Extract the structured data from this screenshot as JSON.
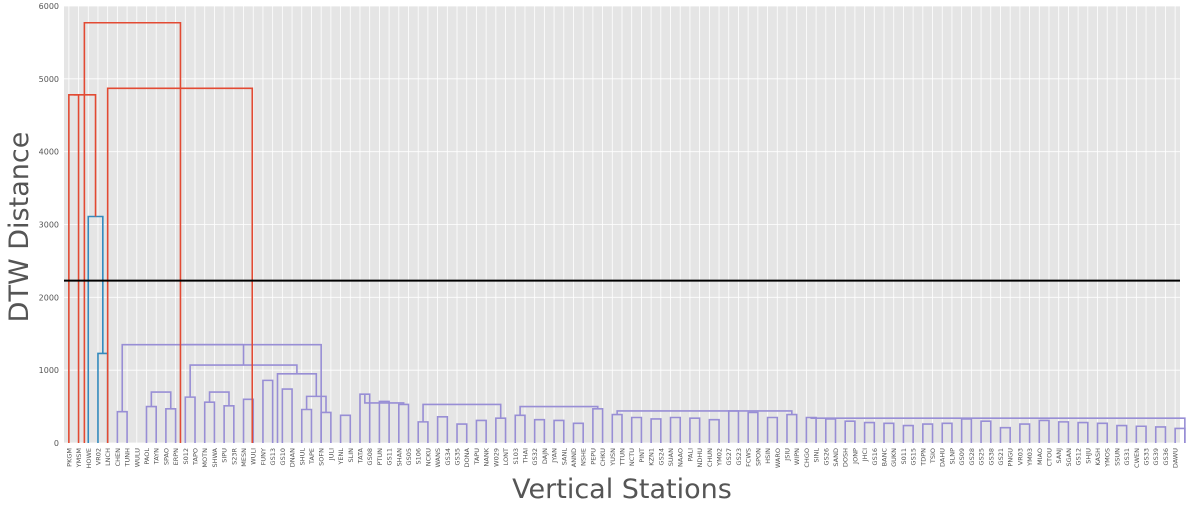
{
  "chart_data": {
    "type": "dendrogram",
    "xlabel": "Vertical Stations",
    "ylabel": "DTW Distance",
    "ylim": [
      0,
      6000
    ],
    "yticks": [
      0,
      1000,
      2000,
      3000,
      4000,
      5000,
      6000
    ],
    "grid": true,
    "threshold": 2230,
    "colors": {
      "background": "#e5e5e5",
      "grid": "#ffffff",
      "top_link": "#e24a33",
      "cluster_1": "#348abd",
      "cluster_2": "#988ed5",
      "threshold_line": "#000000",
      "tick_text": "#555555"
    },
    "leaves": [
      "PKGM",
      "YMSM",
      "HOWE",
      "VR02",
      "LNCH",
      "CHEN",
      "TUNH",
      "WULU",
      "PAOL",
      "TAYN",
      "SPAO",
      "ERPN",
      "S012",
      "TAPO",
      "MOTN",
      "SHWA",
      "SIPU",
      "S23R",
      "MESN",
      "WULI",
      "FUNY",
      "GS13",
      "GS10",
      "DNAN",
      "SHUL",
      "TAPE",
      "SOFN",
      "JULI",
      "YENL",
      "SLIN",
      "TATA",
      "GS08",
      "PTUN",
      "GS11",
      "SHAN",
      "GS05",
      "S106",
      "NCKU",
      "WANS",
      "GS34",
      "GS35",
      "DONA",
      "TAPU",
      "NANK",
      "W029",
      "LONT",
      "S103",
      "THAI",
      "GS32",
      "DAJN",
      "JYAN",
      "SANL",
      "ANND",
      "NSHE",
      "PEPU",
      "CHKU",
      "YUSN",
      "TTUN",
      "NCTU",
      "PINT",
      "KZN1",
      "GS24",
      "SUAN",
      "NAAO",
      "PALI",
      "NDHU",
      "CHUN",
      "YM02",
      "GS27",
      "GS23",
      "FCWS",
      "SPON",
      "HSIN",
      "WARO",
      "JSIU",
      "WIPN",
      "CHGO",
      "SINL",
      "GS26",
      "SAND",
      "DOSH",
      "JONP",
      "JHCI",
      "GS16",
      "BANC",
      "GUKN",
      "S011",
      "GS15",
      "TDPN",
      "TSIO",
      "DAHU",
      "SLNP",
      "GS09",
      "GS28",
      "GS25",
      "GS38",
      "GS21",
      "PNGU",
      "VR03",
      "YM03",
      "MIAO",
      "CTOU",
      "SANJ",
      "SGAN",
      "GS12",
      "SHJU",
      "KASH",
      "YMOS",
      "SSUN",
      "GS31",
      "CWEN",
      "GS33",
      "GS39",
      "GS36",
      "DAWU"
    ],
    "links": [
      {
        "leaves": [
          3,
          4
        ],
        "height": 1230,
        "color": "cluster_1"
      },
      {
        "leaves": [
          2,
          3.5
        ],
        "height": 3110,
        "color": "cluster_1"
      },
      {
        "leaves": [
          0,
          1
        ],
        "height": 4780,
        "color": "top_link"
      },
      {
        "leaves": [
          0.5,
          2.75
        ],
        "height": 4780,
        "color": "top_link"
      },
      {
        "leaves": [
          5,
          6
        ],
        "height": 430,
        "color": "cluster_2"
      },
      {
        "leaves": [
          8,
          9
        ],
        "height": 500,
        "color": "cluster_2"
      },
      {
        "leaves": [
          10,
          11
        ],
        "height": 470,
        "color": "cluster_2"
      },
      {
        "leaves": [
          14,
          15
        ],
        "height": 560,
        "color": "cluster_2"
      },
      {
        "leaves": [
          16,
          17
        ],
        "height": 510,
        "color": "cluster_2"
      },
      {
        "leaves": [
          18,
          19
        ],
        "height": 600,
        "color": "cluster_2"
      },
      {
        "leaves": [
          20,
          21
        ],
        "height": 860,
        "color": "cluster_2"
      },
      {
        "leaves": [
          22,
          23
        ],
        "height": 740,
        "color": "cluster_2"
      },
      {
        "leaves": [
          24,
          25
        ],
        "height": 460,
        "color": "cluster_2"
      },
      {
        "leaves": [
          26,
          27
        ],
        "height": 420,
        "color": "cluster_2"
      },
      {
        "leaves": [
          28,
          29
        ],
        "height": 380,
        "color": "cluster_2"
      },
      {
        "leaves": [
          30,
          31
        ],
        "height": 670,
        "color": "cluster_2"
      },
      {
        "leaves": [
          32,
          33
        ],
        "height": 570,
        "color": "cluster_2"
      },
      {
        "leaves": [
          34,
          35
        ],
        "height": 530,
        "color": "cluster_2"
      },
      {
        "leaves": [
          36,
          37
        ],
        "height": 290,
        "color": "cluster_2"
      },
      {
        "leaves": [
          38,
          39
        ],
        "height": 360,
        "color": "cluster_2"
      },
      {
        "leaves": [
          40,
          41
        ],
        "height": 260,
        "color": "cluster_2"
      },
      {
        "leaves": [
          42,
          43
        ],
        "height": 310,
        "color": "cluster_2"
      },
      {
        "leaves": [
          44,
          45
        ],
        "height": 340,
        "color": "cluster_2"
      },
      {
        "leaves": [
          46,
          47
        ],
        "height": 380,
        "color": "cluster_2"
      },
      {
        "leaves": [
          48,
          49
        ],
        "height": 320,
        "color": "cluster_2"
      },
      {
        "leaves": [
          50,
          51
        ],
        "height": 310,
        "color": "cluster_2"
      },
      {
        "leaves": [
          52,
          53
        ],
        "height": 270,
        "color": "cluster_2"
      },
      {
        "leaves": [
          54,
          55
        ],
        "height": 470,
        "color": "cluster_2"
      },
      {
        "leaves": [
          56,
          57
        ],
        "height": 390,
        "color": "cluster_2"
      },
      {
        "leaves": [
          58,
          59
        ],
        "height": 350,
        "color": "cluster_2"
      },
      {
        "leaves": [
          60,
          61
        ],
        "height": 330,
        "color": "cluster_2"
      },
      {
        "leaves": [
          62,
          63
        ],
        "height": 350,
        "color": "cluster_2"
      },
      {
        "leaves": [
          64,
          65
        ],
        "height": 340,
        "color": "cluster_2"
      },
      {
        "leaves": [
          66,
          67
        ],
        "height": 320,
        "color": "cluster_2"
      },
      {
        "leaves": [
          68,
          69
        ],
        "height": 440,
        "color": "cluster_2"
      },
      {
        "leaves": [
          70,
          71
        ],
        "height": 420,
        "color": "cluster_2"
      },
      {
        "leaves": [
          72,
          73
        ],
        "height": 350,
        "color": "cluster_2"
      },
      {
        "leaves": [
          74,
          75
        ],
        "height": 390,
        "color": "cluster_2"
      },
      {
        "leaves": [
          76,
          77
        ],
        "height": 350,
        "color": "cluster_2"
      },
      {
        "leaves": [
          78,
          79
        ],
        "height": 330,
        "color": "cluster_2"
      },
      {
        "leaves": [
          80,
          81
        ],
        "height": 300,
        "color": "cluster_2"
      },
      {
        "leaves": [
          82,
          83
        ],
        "height": 280,
        "color": "cluster_2"
      },
      {
        "leaves": [
          84,
          85
        ],
        "height": 270,
        "color": "cluster_2"
      },
      {
        "leaves": [
          86,
          87
        ],
        "height": 240,
        "color": "cluster_2"
      },
      {
        "leaves": [
          88,
          89
        ],
        "height": 260,
        "color": "cluster_2"
      },
      {
        "leaves": [
          90,
          91
        ],
        "height": 270,
        "color": "cluster_2"
      },
      {
        "leaves": [
          92,
          93
        ],
        "height": 330,
        "color": "cluster_2"
      },
      {
        "leaves": [
          94,
          95
        ],
        "height": 300,
        "color": "cluster_2"
      },
      {
        "leaves": [
          96,
          97
        ],
        "height": 210,
        "color": "cluster_2"
      },
      {
        "leaves": [
          98,
          99
        ],
        "height": 260,
        "color": "cluster_2"
      },
      {
        "leaves": [
          100,
          101
        ],
        "height": 310,
        "color": "cluster_2"
      },
      {
        "leaves": [
          102,
          103
        ],
        "height": 290,
        "color": "cluster_2"
      },
      {
        "leaves": [
          104,
          105
        ],
        "height": 280,
        "color": "cluster_2"
      },
      {
        "leaves": [
          106,
          107
        ],
        "height": 270,
        "color": "cluster_2"
      },
      {
        "leaves": [
          108,
          109
        ],
        "height": 240,
        "color": "cluster_2"
      },
      {
        "leaves": [
          110,
          111
        ],
        "height": 230,
        "color": "cluster_2"
      },
      {
        "leaves": [
          112,
          113
        ],
        "height": 220,
        "color": "cluster_2"
      },
      {
        "leaves": [
          114,
          115
        ],
        "height": 200,
        "color": "cluster_2"
      },
      {
        "leaves": [
          14.5,
          16.5
        ],
        "height": 700,
        "color": "cluster_2"
      },
      {
        "leaves": [
          12,
          13
        ],
        "height": 630,
        "color": "cluster_2"
      },
      {
        "leaves": [
          8.5,
          10.5
        ],
        "height": 700,
        "color": "cluster_2"
      },
      {
        "leaves": [
          24.5,
          26.5
        ],
        "height": 640,
        "color": "cluster_2"
      },
      {
        "leaves": [
          21.5,
          25.5
        ],
        "height": 950,
        "color": "cluster_2"
      },
      {
        "leaves": [
          30.5,
          34.5
        ],
        "height": 550,
        "color": "cluster_2"
      },
      {
        "leaves": [
          36.5,
          44.5
        ],
        "height": 530,
        "color": "cluster_2"
      },
      {
        "leaves": [
          46.5,
          54.5
        ],
        "height": 500,
        "color": "cluster_2"
      },
      {
        "leaves": [
          56.5,
          74.5
        ],
        "height": 440,
        "color": "cluster_2"
      },
      {
        "leaves": [
          76.5,
          115
        ],
        "height": 340,
        "color": "cluster_2"
      },
      {
        "leaves": [
          12.5,
          23.5
        ],
        "height": 1070,
        "color": "cluster_2"
      },
      {
        "leaves": [
          5.5,
          18
        ],
        "height": 1350,
        "color": "cluster_2"
      },
      {
        "leaves": [
          11.75,
          26
        ],
        "height": 1350,
        "color": "cluster_2"
      },
      {
        "leaves": [
          4,
          18.9
        ],
        "height": 4870,
        "color": "top_link"
      },
      {
        "leaves": [
          1.6,
          11.5
        ],
        "height": 5770,
        "color": "top_link"
      }
    ]
  }
}
